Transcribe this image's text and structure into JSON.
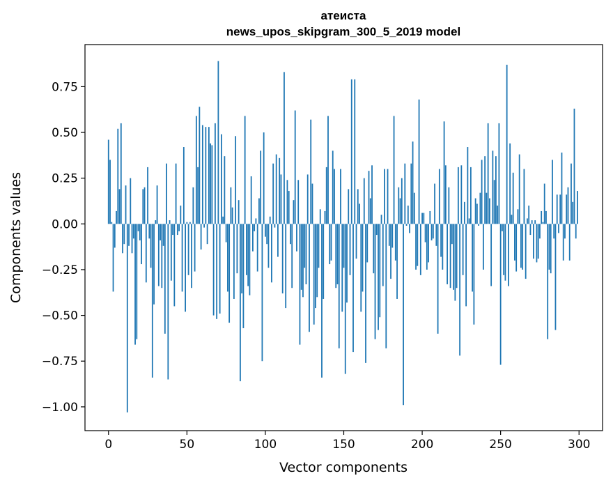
{
  "chart_data": {
    "type": "bar",
    "title": "атеиста",
    "subtitle": "news_upos_skipgram_300_5_2019 model",
    "xlabel": "Vector components",
    "ylabel": "Components values",
    "xlim": [
      -15,
      315
    ],
    "ylim": [
      -1.13,
      0.98
    ],
    "xticks": [
      0,
      50,
      100,
      150,
      200,
      250,
      300
    ],
    "xtick_labels": [
      "0",
      "50",
      "100",
      "150",
      "200",
      "250",
      "300"
    ],
    "yticks": [
      -1.0,
      -0.75,
      -0.5,
      -0.25,
      0.0,
      0.25,
      0.5,
      0.75
    ],
    "ytick_labels": [
      "−1.00",
      "−0.75",
      "−0.50",
      "−0.25",
      "0.00",
      "0.25",
      "0.50",
      "0.75"
    ],
    "grid": false,
    "bar_color": "#1f77b4",
    "x": [
      0,
      1,
      2,
      3,
      4,
      5,
      6,
      7,
      8,
      9,
      10,
      11,
      12,
      13,
      14,
      15,
      16,
      17,
      18,
      19,
      20,
      21,
      22,
      23,
      24,
      25,
      26,
      27,
      28,
      29,
      30,
      31,
      32,
      33,
      34,
      35,
      36,
      37,
      38,
      39,
      40,
      41,
      42,
      43,
      44,
      45,
      46,
      47,
      48,
      49,
      50,
      51,
      52,
      53,
      54,
      55,
      56,
      57,
      58,
      59,
      60,
      61,
      62,
      63,
      64,
      65,
      66,
      67,
      68,
      69,
      70,
      71,
      72,
      73,
      74,
      75,
      76,
      77,
      78,
      79,
      80,
      81,
      82,
      83,
      84,
      85,
      86,
      87,
      88,
      89,
      90,
      91,
      92,
      93,
      94,
      95,
      96,
      97,
      98,
      99,
      100,
      101,
      102,
      103,
      104,
      105,
      106,
      107,
      108,
      109,
      110,
      111,
      112,
      113,
      114,
      115,
      116,
      117,
      118,
      119,
      120,
      121,
      122,
      123,
      124,
      125,
      126,
      127,
      128,
      129,
      130,
      131,
      132,
      133,
      134,
      135,
      136,
      137,
      138,
      139,
      140,
      141,
      142,
      143,
      144,
      145,
      146,
      147,
      148,
      149,
      150,
      151,
      152,
      153,
      154,
      155,
      156,
      157,
      158,
      159,
      160,
      161,
      162,
      163,
      164,
      165,
      166,
      167,
      168,
      169,
      170,
      171,
      172,
      173,
      174,
      175,
      176,
      177,
      178,
      179,
      180,
      181,
      182,
      183,
      184,
      185,
      186,
      187,
      188,
      189,
      190,
      191,
      192,
      193,
      194,
      195,
      196,
      197,
      198,
      199,
      200,
      201,
      202,
      203,
      204,
      205,
      206,
      207,
      208,
      209,
      210,
      211,
      212,
      213,
      214,
      215,
      216,
      217,
      218,
      219,
      220,
      221,
      222,
      223,
      224,
      225,
      226,
      227,
      228,
      229,
      230,
      231,
      232,
      233,
      234,
      235,
      236,
      237,
      238,
      239,
      240,
      241,
      242,
      243,
      244,
      245,
      246,
      247,
      248,
      249,
      250,
      251,
      252,
      253,
      254,
      255,
      256,
      257,
      258,
      259,
      260,
      261,
      262,
      263,
      264,
      265,
      266,
      267,
      268,
      269,
      270,
      271,
      272,
      273,
      274,
      275,
      276,
      277,
      278,
      279,
      280,
      281,
      282,
      283,
      284,
      285,
      286,
      287,
      288,
      289,
      290,
      291,
      292,
      293,
      294,
      295,
      296,
      297,
      298,
      299
    ],
    "values": [
      0.46,
      0.35,
      0.01,
      -0.37,
      -0.13,
      0.07,
      0.52,
      0.19,
      0.55,
      -0.16,
      -0.11,
      0.21,
      -1.03,
      -0.12,
      0.25,
      -0.16,
      -0.08,
      -0.66,
      -0.63,
      -0.04,
      -0.09,
      -0.22,
      0.19,
      0.2,
      -0.32,
      0.31,
      -0.08,
      -0.24,
      -0.84,
      -0.44,
      0.02,
      0.21,
      -0.34,
      -0.09,
      -0.35,
      -0.12,
      -0.6,
      0.33,
      -0.85,
      0.02,
      -0.31,
      -0.06,
      -0.45,
      0.33,
      -0.06,
      -0.04,
      0.1,
      -0.37,
      0.42,
      -0.48,
      0.01,
      -0.28,
      0.01,
      -0.35,
      0.2,
      -0.26,
      0.59,
      0.31,
      0.64,
      -0.14,
      0.54,
      -0.02,
      0.53,
      -0.11,
      0.53,
      0.44,
      0.43,
      -0.5,
      0.55,
      -0.52,
      0.89,
      -0.49,
      0.49,
      0.04,
      0.37,
      -0.1,
      -0.37,
      -0.54,
      0.2,
      0.09,
      -0.41,
      0.48,
      -0.27,
      0.13,
      -0.86,
      -0.38,
      -0.57,
      0.59,
      -0.28,
      -0.34,
      -0.39,
      0.26,
      -0.15,
      -0.04,
      0.03,
      -0.26,
      0.14,
      0.4,
      -0.75,
      0.5,
      -0.07,
      -0.11,
      -0.24,
      0.04,
      -0.32,
      0.33,
      -0.02,
      0.38,
      -0.18,
      0.36,
      0.27,
      -0.38,
      0.83,
      -0.46,
      0.24,
      0.18,
      -0.11,
      -0.35,
      0.13,
      0.62,
      -0.15,
      0.24,
      -0.66,
      -0.36,
      -0.4,
      -0.24,
      -0.33,
      0.27,
      -0.59,
      0.57,
      0.22,
      -0.55,
      -0.46,
      -0.4,
      -0.24,
      0.08,
      -0.84,
      -0.41,
      0.07,
      0.31,
      0.59,
      -0.22,
      -0.2,
      0.4,
      0.3,
      -0.35,
      -0.33,
      -0.68,
      0.3,
      -0.48,
      -0.24,
      -0.82,
      -0.43,
      0.19,
      -0.28,
      0.79,
      -0.7,
      0.79,
      -0.19,
      0.19,
      0.11,
      -0.48,
      -0.37,
      0.25,
      -0.76,
      -0.21,
      0.29,
      0.14,
      0.32,
      -0.27,
      -0.63,
      -0.06,
      -0.58,
      -0.51,
      0.05,
      -0.34,
      0.3,
      -0.68,
      0.3,
      -0.12,
      -0.3,
      -0.13,
      0.59,
      -0.2,
      -0.41,
      0.2,
      0.14,
      0.25,
      -0.99,
      0.33,
      -0.01,
      0.1,
      -0.05,
      0.33,
      0.45,
      0.17,
      -0.25,
      -0.23,
      0.68,
      -0.28,
      0.06,
      0.06,
      -0.1,
      -0.25,
      -0.21,
      0.07,
      -0.09,
      -0.08,
      0.22,
      -0.12,
      -0.6,
      0.3,
      -0.18,
      -0.25,
      0.56,
      0.32,
      -0.33,
      0.2,
      -0.35,
      -0.11,
      -0.36,
      -0.42,
      -0.35,
      0.31,
      -0.72,
      0.32,
      -0.28,
      0.12,
      -0.45,
      0.42,
      0.03,
      0.31,
      -0.37,
      -0.55,
      0.14,
      0.11,
      -0.01,
      0.17,
      0.35,
      -0.25,
      0.37,
      0.17,
      0.55,
      0.14,
      -0.34,
      0.4,
      0.24,
      0.37,
      0.1,
      0.55,
      -0.77,
      -0.04,
      -0.28,
      -0.31,
      0.87,
      -0.34,
      0.44,
      0.05,
      0.28,
      -0.2,
      -0.26,
      0.08,
      0.38,
      -0.24,
      -0.25,
      0.3,
      -0.3,
      0.03,
      0.1,
      -0.06,
      0.02,
      -0.19,
      0.02,
      -0.21,
      -0.19,
      -0.08,
      0.07,
      0.01,
      0.22,
      0.07,
      -0.63,
      -0.25,
      -0.27,
      0.35,
      -0.08,
      -0.58,
      0.16,
      -0.05,
      0.16,
      0.39,
      -0.2,
      -0.08,
      0.16,
      0.2,
      -0.2,
      0.33,
      0.12,
      0.63,
      -0.08,
      0.18
    ]
  }
}
